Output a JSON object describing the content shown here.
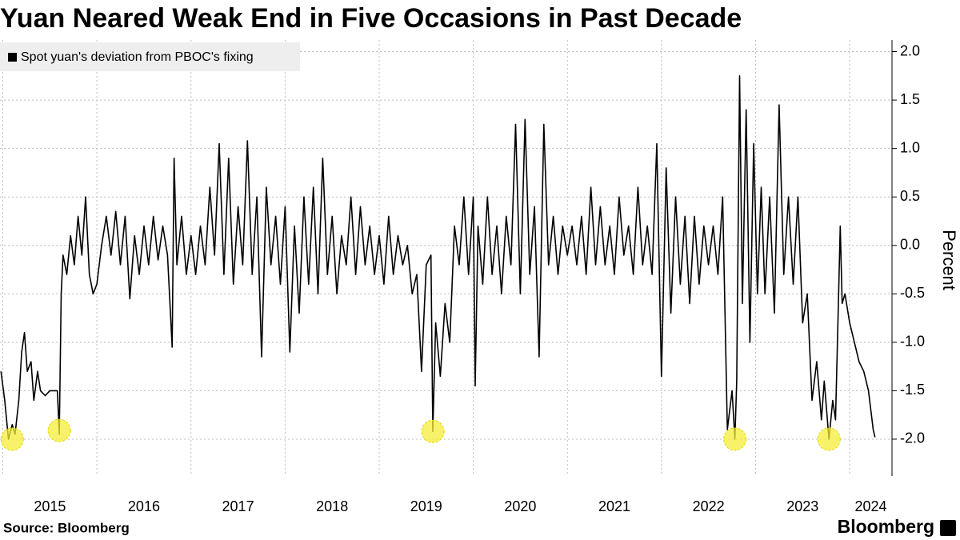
{
  "chart_data": {
    "type": "line",
    "title": "Yuan Neared Weak End in Five Occasions in Past Decade",
    "y_label": "Percent",
    "source": "Source: Bloomberg",
    "brand": "Bloomberg",
    "xlim": [
      2014.97,
      2024.45
    ],
    "xticks": [
      2015,
      2016,
      2017,
      2018,
      2019,
      2020,
      2021,
      2022,
      2023,
      2024
    ],
    "ylim": [
      -2.38,
      2.12
    ],
    "yticks": [
      {
        "value": -2,
        "label": "-2.0"
      },
      -1.5,
      {
        "value": -1,
        "label": "-1.0"
      },
      -0.5,
      {
        "value": 0,
        "label": "0.0"
      },
      0.5,
      {
        "value": 1,
        "label": "1.0"
      },
      1.5,
      {
        "value": 2,
        "label": "2.0"
      }
    ],
    "grid": true,
    "legend": "upper left",
    "highlights": [
      {
        "x": 2015.1,
        "y": -2.0
      },
      {
        "x": 2015.6,
        "y": -1.91
      },
      {
        "x": 2019.57,
        "y": -1.92
      },
      {
        "x": 2022.78,
        "y": -2.0
      },
      {
        "x": 2023.78,
        "y": -2.0
      }
    ],
    "highlight_color": "#f5ee3a",
    "series": [
      {
        "name": "Spot yuan's deviation from PBOC's fixing",
        "color": "#000000",
        "x": [
          2014.98,
          2015.02,
          2015.06,
          2015.1,
          2015.13,
          2015.17,
          2015.2,
          2015.23,
          2015.26,
          2015.3,
          2015.33,
          2015.37,
          2015.4,
          2015.45,
          2015.5,
          2015.55,
          2015.58,
          2015.6,
          2015.62,
          2015.64,
          2015.68,
          2015.72,
          2015.76,
          2015.8,
          2015.84,
          2015.88,
          2015.92,
          2015.96,
          2016.0,
          2016.05,
          2016.1,
          2016.15,
          2016.2,
          2016.25,
          2016.3,
          2016.35,
          2016.4,
          2016.45,
          2016.5,
          2016.55,
          2016.6,
          2016.65,
          2016.7,
          2016.75,
          2016.8,
          2016.82,
          2016.85,
          2016.9,
          2016.95,
          2017.0,
          2017.05,
          2017.1,
          2017.15,
          2017.2,
          2017.25,
          2017.3,
          2017.35,
          2017.4,
          2017.45,
          2017.5,
          2017.55,
          2017.6,
          2017.65,
          2017.7,
          2017.75,
          2017.8,
          2017.85,
          2017.9,
          2017.95,
          2018.0,
          2018.05,
          2018.1,
          2018.15,
          2018.2,
          2018.25,
          2018.3,
          2018.35,
          2018.4,
          2018.45,
          2018.5,
          2018.55,
          2018.6,
          2018.65,
          2018.7,
          2018.75,
          2018.8,
          2018.85,
          2018.9,
          2018.95,
          2019.0,
          2019.05,
          2019.1,
          2019.15,
          2019.2,
          2019.25,
          2019.3,
          2019.35,
          2019.4,
          2019.45,
          2019.5,
          2019.55,
          2019.57,
          2019.6,
          2019.65,
          2019.7,
          2019.75,
          2019.8,
          2019.85,
          2019.9,
          2019.95,
          2020.0,
          2020.02,
          2020.05,
          2020.1,
          2020.15,
          2020.2,
          2020.25,
          2020.3,
          2020.35,
          2020.4,
          2020.45,
          2020.5,
          2020.55,
          2020.6,
          2020.65,
          2020.7,
          2020.75,
          2020.8,
          2020.85,
          2020.9,
          2020.95,
          2021.0,
          2021.05,
          2021.1,
          2021.15,
          2021.2,
          2021.25,
          2021.3,
          2021.35,
          2021.4,
          2021.45,
          2021.5,
          2021.55,
          2021.6,
          2021.65,
          2021.7,
          2021.75,
          2021.8,
          2021.85,
          2021.9,
          2021.95,
          2022.0,
          2022.05,
          2022.1,
          2022.15,
          2022.2,
          2022.25,
          2022.3,
          2022.35,
          2022.4,
          2022.45,
          2022.5,
          2022.55,
          2022.6,
          2022.65,
          2022.7,
          2022.75,
          2022.78,
          2022.8,
          2022.83,
          2022.86,
          2022.9,
          2022.94,
          2022.98,
          2023.02,
          2023.06,
          2023.1,
          2023.15,
          2023.2,
          2023.25,
          2023.3,
          2023.35,
          2023.4,
          2023.45,
          2023.5,
          2023.55,
          2023.6,
          2023.65,
          2023.7,
          2023.73,
          2023.78,
          2023.82,
          2023.85,
          2023.88,
          2023.9,
          2023.92,
          2023.95,
          2024.0,
          2024.05,
          2024.1,
          2024.15,
          2024.2,
          2024.25,
          2024.27
        ],
        "values": [
          -1.3,
          -1.6,
          -2.0,
          -1.85,
          -1.95,
          -1.6,
          -1.1,
          -0.9,
          -1.3,
          -1.2,
          -1.6,
          -1.3,
          -1.5,
          -1.55,
          -1.5,
          -1.5,
          -1.5,
          -1.95,
          -0.5,
          -0.1,
          -0.3,
          0.1,
          -0.2,
          0.3,
          -0.1,
          0.5,
          -0.3,
          -0.5,
          -0.4,
          0.0,
          0.3,
          -0.1,
          0.35,
          -0.2,
          0.3,
          -0.55,
          0.1,
          -0.3,
          0.2,
          -0.2,
          0.3,
          -0.15,
          0.2,
          -0.1,
          -1.05,
          0.9,
          -0.2,
          0.3,
          -0.3,
          0.1,
          -0.3,
          0.2,
          -0.2,
          0.6,
          -0.1,
          1.05,
          -0.3,
          0.9,
          -0.4,
          0.4,
          -0.2,
          1.08,
          -0.3,
          0.5,
          -1.15,
          0.6,
          -0.2,
          0.3,
          -0.4,
          0.4,
          -1.1,
          0.2,
          -0.7,
          0.5,
          -0.4,
          0.6,
          -0.5,
          0.9,
          -0.3,
          0.3,
          -0.5,
          0.1,
          -0.2,
          0.5,
          -0.3,
          0.4,
          -0.2,
          0.2,
          -0.3,
          0.1,
          -0.4,
          0.3,
          -0.3,
          0.1,
          -0.2,
          0.0,
          -0.5,
          -0.3,
          -1.3,
          -0.2,
          -0.1,
          -1.92,
          -0.8,
          -1.35,
          -0.6,
          -1.0,
          0.2,
          -0.2,
          0.5,
          -0.3,
          0.5,
          -1.45,
          0.2,
          -0.4,
          0.5,
          -0.3,
          0.2,
          -0.5,
          0.3,
          -0.2,
          1.25,
          -0.5,
          1.3,
          -0.3,
          0.4,
          -1.15,
          1.25,
          -0.2,
          0.3,
          -0.3,
          0.2,
          -0.1,
          0.2,
          -0.2,
          0.3,
          -0.3,
          0.6,
          -0.2,
          0.4,
          -0.2,
          0.2,
          -0.3,
          0.5,
          -0.1,
          0.2,
          -0.3,
          0.6,
          -0.2,
          0.2,
          -0.3,
          1.05,
          -1.35,
          0.8,
          -0.7,
          0.5,
          -0.4,
          0.3,
          -0.6,
          0.3,
          -0.4,
          0.2,
          -0.2,
          0.2,
          -0.3,
          0.5,
          -1.9,
          -1.5,
          -2.0,
          -1.4,
          1.75,
          -0.6,
          1.4,
          -1.0,
          1.05,
          -0.5,
          0.6,
          -0.5,
          0.5,
          -0.7,
          1.45,
          -0.3,
          0.5,
          -0.4,
          0.5,
          -0.8,
          -0.5,
          -1.6,
          -1.2,
          -1.8,
          -1.4,
          -2.0,
          -1.6,
          -1.8,
          -0.6,
          0.2,
          -0.6,
          -0.5,
          -0.8,
          -1.0,
          -1.2,
          -1.3,
          -1.5,
          -1.9,
          -1.98
        ]
      }
    ]
  }
}
